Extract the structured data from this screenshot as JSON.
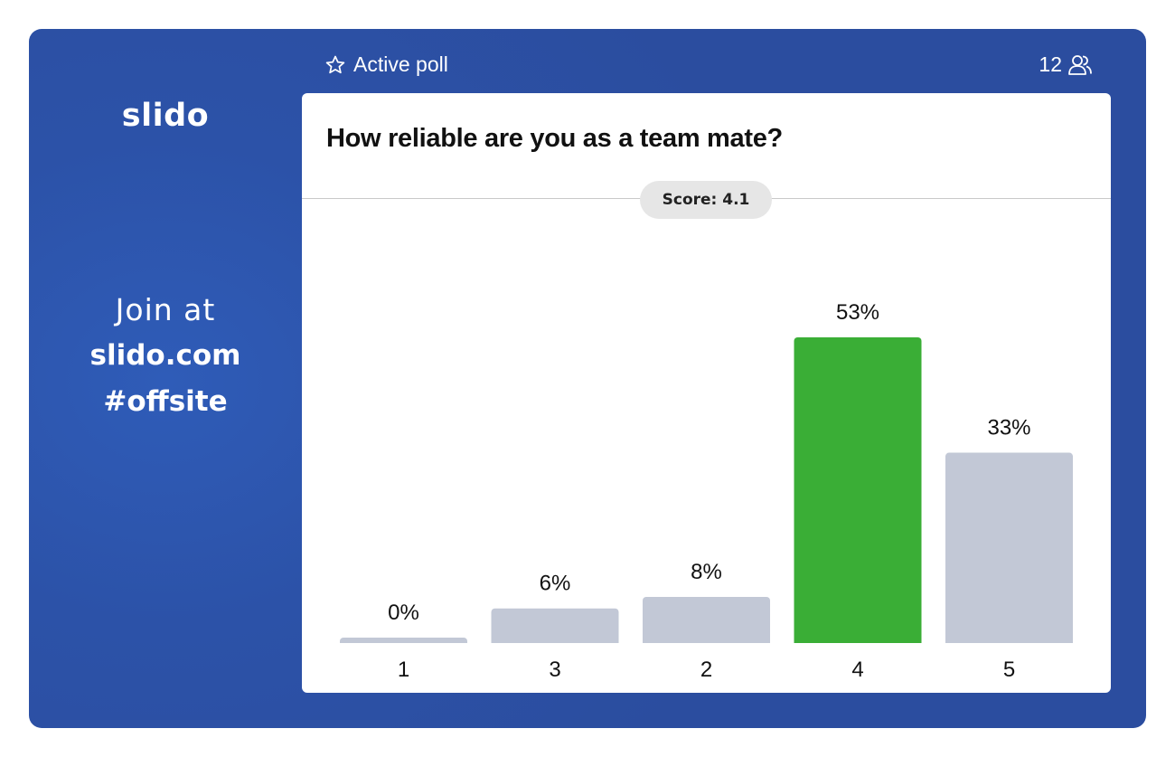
{
  "brand": {
    "logo_text": "slido"
  },
  "join": {
    "line1": "Join at",
    "url": "slido.com",
    "code": "#offsite"
  },
  "topbar": {
    "status_label": "Active poll",
    "participant_count": "12",
    "status_icon": "star-icon",
    "participants_icon": "people-icon"
  },
  "poll": {
    "question": "How reliable are you as a team mate?",
    "score_label": "Score: 4.1"
  },
  "colors": {
    "background": "#2c52a8",
    "bar_default": "#c2c8d6",
    "bar_highlight": "#3aae36",
    "card": "#ffffff"
  },
  "chart_data": {
    "type": "bar",
    "categories": [
      "1",
      "3",
      "2",
      "4",
      "5"
    ],
    "values": [
      0,
      6,
      8,
      53,
      33
    ],
    "value_labels": [
      "0%",
      "6%",
      "8%",
      "53%",
      "33%"
    ],
    "highlight_index": 3,
    "ylim": [
      0,
      53
    ],
    "grid": false
  }
}
